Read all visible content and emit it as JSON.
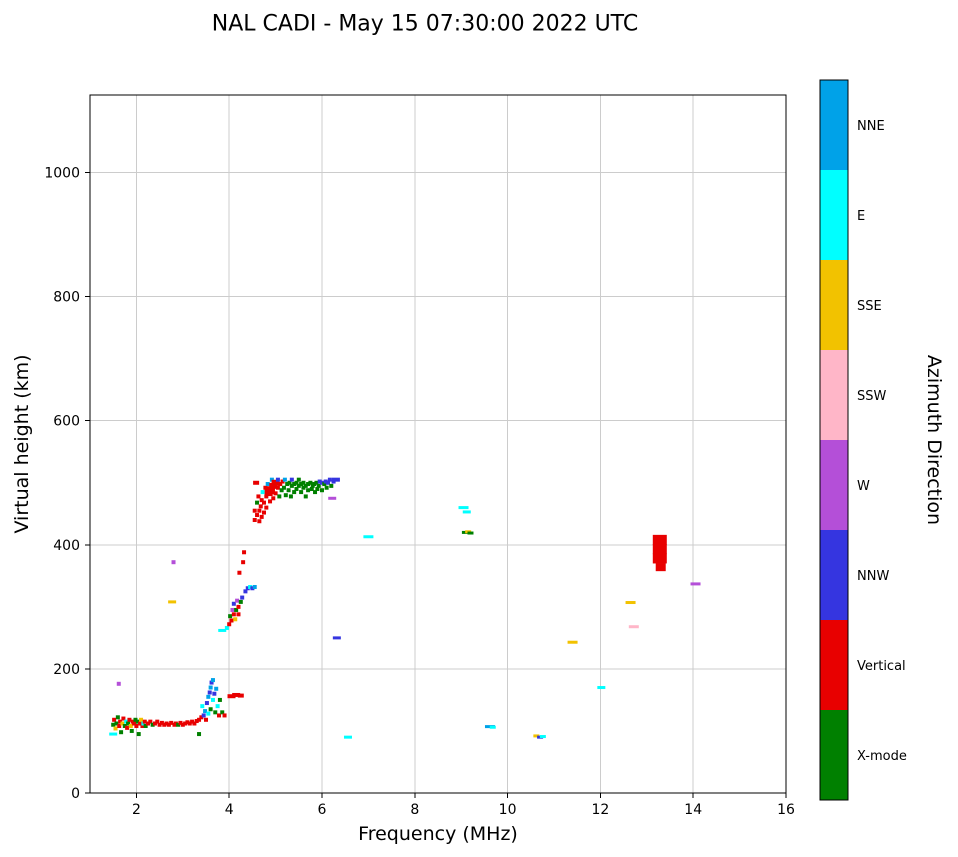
{
  "title": "NAL CADI - May 15 07:30:00 2022 UTC",
  "chart_data": {
    "type": "scatter",
    "title": "NAL CADI - May 15 07:30:00 2022 UTC",
    "xlabel": "Frequency (MHz)",
    "ylabel": "Virtual height (km)",
    "legend_title": "Azimuth Direction",
    "xlim": [
      1,
      16
    ],
    "ylim": [
      0,
      1125
    ],
    "xticks": [
      2,
      4,
      6,
      8,
      10,
      12,
      14,
      16
    ],
    "yticks": [
      0,
      200,
      400,
      600,
      800,
      1000
    ],
    "grid": true,
    "grid_color": "#cccccc",
    "categories": [
      {
        "label": "NNE",
        "color": "#00A2E8"
      },
      {
        "label": "E",
        "color": "#00FFFF"
      },
      {
        "label": "SSE",
        "color": "#F2C200"
      },
      {
        "label": "SSW",
        "color": "#FFB6C8"
      },
      {
        "label": "W",
        "color": "#B44FD8"
      },
      {
        "label": "NNW",
        "color": "#3535E0"
      },
      {
        "label": "Vertical",
        "color": "#E80000"
      },
      {
        "label": "X-mode",
        "color": "#008000"
      }
    ],
    "points_format": [
      "freq_MHz",
      "height_km",
      "direction",
      "marker_w_px_optional",
      "marker_h_px_optional"
    ],
    "points": [
      [
        1.5,
        95,
        "E",
        8,
        3
      ],
      [
        1.5,
        110,
        "X-mode"
      ],
      [
        1.52,
        118,
        "Vertical"
      ],
      [
        1.55,
        104,
        "SSE"
      ],
      [
        1.57,
        112,
        "X-mode"
      ],
      [
        1.6,
        122,
        "X-mode"
      ],
      [
        1.62,
        176,
        "W"
      ],
      [
        1.63,
        108,
        "Vertical"
      ],
      [
        1.65,
        115,
        "Vertical"
      ],
      [
        1.67,
        98,
        "X-mode"
      ],
      [
        1.7,
        112,
        "SSE"
      ],
      [
        1.72,
        120,
        "Vertical"
      ],
      [
        1.75,
        108,
        "X-mode"
      ],
      [
        1.78,
        115,
        "E"
      ],
      [
        1.8,
        105,
        "Vertical"
      ],
      [
        1.82,
        112,
        "X-mode"
      ],
      [
        1.85,
        118,
        "Vertical"
      ],
      [
        1.88,
        108,
        "SSE"
      ],
      [
        1.9,
        100,
        "X-mode"
      ],
      [
        1.92,
        115,
        "Vertical"
      ],
      [
        1.95,
        112,
        "Vertical"
      ],
      [
        1.98,
        118,
        "X-mode"
      ],
      [
        2.0,
        108,
        "Vertical"
      ],
      [
        2.03,
        115,
        "X-mode"
      ],
      [
        2.05,
        95,
        "X-mode"
      ],
      [
        2.08,
        112,
        "Vertical"
      ],
      [
        2.1,
        118,
        "SSE"
      ],
      [
        2.13,
        108,
        "Vertical"
      ],
      [
        2.15,
        112,
        "E"
      ],
      [
        2.18,
        115,
        "Vertical"
      ],
      [
        2.2,
        108,
        "X-mode"
      ],
      [
        2.25,
        112,
        "Vertical"
      ],
      [
        2.3,
        115,
        "Vertical"
      ],
      [
        2.35,
        110,
        "X-mode"
      ],
      [
        2.4,
        112,
        "Vertical"
      ],
      [
        2.45,
        115,
        "Vertical"
      ],
      [
        2.5,
        110,
        "Vertical"
      ],
      [
        2.55,
        113,
        "Vertical"
      ],
      [
        2.6,
        110,
        "Vertical"
      ],
      [
        2.65,
        112,
        "Vertical"
      ],
      [
        2.7,
        110,
        "Vertical"
      ],
      [
        2.75,
        113,
        "Vertical"
      ],
      [
        2.77,
        308,
        "SSE",
        8,
        3
      ],
      [
        2.8,
        372,
        "W"
      ],
      [
        2.82,
        110,
        "Vertical"
      ],
      [
        2.85,
        112,
        "Vertical"
      ],
      [
        2.9,
        110,
        "X-mode"
      ],
      [
        2.95,
        113,
        "Vertical"
      ],
      [
        3.0,
        110,
        "Vertical"
      ],
      [
        3.05,
        112,
        "Vertical"
      ],
      [
        3.1,
        114,
        "Vertical"
      ],
      [
        3.15,
        112,
        "Vertical"
      ],
      [
        3.2,
        115,
        "Vertical"
      ],
      [
        3.25,
        112,
        "Vertical"
      ],
      [
        3.3,
        116,
        "Vertical"
      ],
      [
        3.35,
        95,
        "X-mode"
      ],
      [
        3.35,
        118,
        "Vertical"
      ],
      [
        3.4,
        122,
        "Vertical"
      ],
      [
        3.42,
        140,
        "E"
      ],
      [
        3.45,
        125,
        "NNW"
      ],
      [
        3.48,
        132,
        "NNE"
      ],
      [
        3.5,
        118,
        "Vertical"
      ],
      [
        3.52,
        145,
        "NNW"
      ],
      [
        3.55,
        155,
        "NNE"
      ],
      [
        3.55,
        128,
        "E"
      ],
      [
        3.58,
        162,
        "NNW"
      ],
      [
        3.6,
        170,
        "NNE"
      ],
      [
        3.6,
        135,
        "X-mode"
      ],
      [
        3.62,
        178,
        "NNW"
      ],
      [
        3.65,
        150,
        "E"
      ],
      [
        3.65,
        182,
        "NNE"
      ],
      [
        3.68,
        160,
        "NNW"
      ],
      [
        3.7,
        130,
        "X-mode"
      ],
      [
        3.72,
        168,
        "NNE"
      ],
      [
        3.75,
        140,
        "E"
      ],
      [
        3.78,
        125,
        "Vertical"
      ],
      [
        3.8,
        150,
        "X-mode"
      ],
      [
        3.85,
        130,
        "X-mode"
      ],
      [
        3.9,
        125,
        "Vertical"
      ],
      [
        4.05,
        156,
        "Vertical",
        8,
        4
      ],
      [
        4.15,
        158,
        "Vertical",
        8,
        4
      ],
      [
        4.25,
        157,
        "Vertical",
        6,
        4
      ],
      [
        3.85,
        262,
        "E",
        8,
        3
      ],
      [
        3.95,
        266,
        "E"
      ],
      [
        4.0,
        272,
        "Vertical"
      ],
      [
        4.02,
        285,
        "X-mode"
      ],
      [
        4.05,
        278,
        "Vertical"
      ],
      [
        4.07,
        295,
        "W"
      ],
      [
        4.1,
        288,
        "Vertical"
      ],
      [
        4.1,
        305,
        "NNW"
      ],
      [
        4.13,
        280,
        "SSE"
      ],
      [
        4.15,
        295,
        "X-mode"
      ],
      [
        4.17,
        310,
        "W"
      ],
      [
        4.2,
        300,
        "Vertical"
      ],
      [
        4.2,
        288,
        "Vertical"
      ],
      [
        4.22,
        355,
        "Vertical"
      ],
      [
        4.25,
        308,
        "X-mode"
      ],
      [
        4.28,
        315,
        "NNW"
      ],
      [
        4.3,
        372,
        "Vertical"
      ],
      [
        4.32,
        388,
        "Vertical"
      ],
      [
        4.35,
        325,
        "NNW"
      ],
      [
        4.4,
        330,
        "NNW"
      ],
      [
        4.45,
        332,
        "E"
      ],
      [
        4.5,
        330,
        "NNW"
      ],
      [
        4.55,
        332,
        "NNE"
      ],
      [
        4.55,
        440,
        "Vertical"
      ],
      [
        4.55,
        455,
        "Vertical"
      ],
      [
        4.58,
        500,
        "Vertical",
        6,
        4
      ],
      [
        4.6,
        448,
        "Vertical"
      ],
      [
        4.6,
        468,
        "X-mode"
      ],
      [
        4.63,
        478,
        "Vertical"
      ],
      [
        4.65,
        455,
        "Vertical"
      ],
      [
        4.65,
        438,
        "Vertical"
      ],
      [
        4.68,
        462,
        "Vertical"
      ],
      [
        4.7,
        472,
        "Vertical"
      ],
      [
        4.7,
        445,
        "Vertical"
      ],
      [
        4.72,
        485,
        "E"
      ],
      [
        4.75,
        468,
        "Vertical"
      ],
      [
        4.75,
        452,
        "Vertical"
      ],
      [
        4.78,
        492,
        "Vertical"
      ],
      [
        4.8,
        478,
        "Vertical"
      ],
      [
        4.8,
        460,
        "Vertical"
      ],
      [
        4.83,
        498,
        "NNE"
      ],
      [
        4.85,
        485,
        "Vertical",
        8,
        8
      ],
      [
        4.88,
        470,
        "Vertical"
      ],
      [
        4.9,
        488,
        "Vertical",
        8,
        8
      ],
      [
        4.92,
        505,
        "NNE"
      ],
      [
        4.95,
        495,
        "Vertical",
        8,
        6
      ],
      [
        4.95,
        475,
        "Vertical"
      ],
      [
        5.0,
        500,
        "Vertical",
        8,
        6
      ],
      [
        5.0,
        483,
        "Vertical"
      ],
      [
        5.05,
        492,
        "Vertical"
      ],
      [
        5.05,
        505,
        "NNW"
      ],
      [
        5.08,
        478,
        "X-mode"
      ],
      [
        5.1,
        498,
        "Vertical"
      ],
      [
        5.13,
        488,
        "X-mode"
      ],
      [
        5.15,
        502,
        "Vertical"
      ],
      [
        5.18,
        492,
        "X-mode"
      ],
      [
        5.2,
        505,
        "NNE"
      ],
      [
        5.22,
        480,
        "X-mode"
      ],
      [
        5.25,
        498,
        "X-mode"
      ],
      [
        5.28,
        488,
        "X-mode"
      ],
      [
        5.3,
        500,
        "X-mode"
      ],
      [
        5.33,
        478,
        "X-mode"
      ],
      [
        5.35,
        495,
        "X-mode"
      ],
      [
        5.35,
        505,
        "NNW"
      ],
      [
        5.4,
        498,
        "X-mode"
      ],
      [
        5.4,
        485,
        "X-mode"
      ],
      [
        5.45,
        500,
        "X-mode"
      ],
      [
        5.45,
        490,
        "X-mode"
      ],
      [
        5.5,
        495,
        "X-mode"
      ],
      [
        5.5,
        505,
        "X-mode"
      ],
      [
        5.55,
        498,
        "X-mode"
      ],
      [
        5.55,
        485,
        "X-mode"
      ],
      [
        5.6,
        500,
        "X-mode"
      ],
      [
        5.6,
        492,
        "X-mode"
      ],
      [
        5.65,
        495,
        "X-mode"
      ],
      [
        5.65,
        478,
        "X-mode"
      ],
      [
        5.7,
        498,
        "X-mode"
      ],
      [
        5.7,
        488,
        "X-mode"
      ],
      [
        5.75,
        500,
        "X-mode"
      ],
      [
        5.78,
        490,
        "X-mode"
      ],
      [
        5.8,
        495,
        "X-mode"
      ],
      [
        5.83,
        498,
        "X-mode"
      ],
      [
        5.85,
        485,
        "X-mode"
      ],
      [
        5.88,
        500,
        "X-mode"
      ],
      [
        5.9,
        490,
        "X-mode"
      ],
      [
        5.93,
        495,
        "X-mode"
      ],
      [
        5.95,
        502,
        "NNW"
      ],
      [
        6.0,
        488,
        "X-mode"
      ],
      [
        6.0,
        500,
        "NNW"
      ],
      [
        6.05,
        498,
        "X-mode"
      ],
      [
        6.08,
        502,
        "NNW"
      ],
      [
        6.1,
        492,
        "X-mode"
      ],
      [
        6.13,
        500,
        "NNW"
      ],
      [
        6.17,
        505,
        "NNW"
      ],
      [
        6.2,
        495,
        "X-mode"
      ],
      [
        6.22,
        475,
        "W",
        8,
        3
      ],
      [
        6.25,
        502,
        "NNW"
      ],
      [
        6.3,
        505,
        "NNW",
        8,
        4
      ],
      [
        6.32,
        250,
        "NNW",
        8,
        3
      ],
      [
        6.56,
        90,
        "E",
        8,
        3
      ],
      [
        7.0,
        413,
        "E",
        10,
        3
      ],
      [
        9.05,
        460,
        "E",
        10,
        3
      ],
      [
        9.12,
        453,
        "E",
        8,
        3
      ],
      [
        9.08,
        420,
        "X-mode",
        6,
        3
      ],
      [
        9.15,
        421,
        "SSE",
        6,
        3
      ],
      [
        9.2,
        419,
        "X-mode",
        6,
        3
      ],
      [
        9.62,
        107,
        "NNE",
        10,
        3
      ],
      [
        9.68,
        106,
        "E",
        6,
        3
      ],
      [
        10.62,
        92,
        "SSE",
        6,
        3
      ],
      [
        10.7,
        90,
        "NNW",
        6,
        3
      ],
      [
        10.76,
        91,
        "E",
        6,
        3
      ],
      [
        11.4,
        243,
        "SSE",
        10,
        3
      ],
      [
        12.02,
        170,
        "E",
        8,
        3
      ],
      [
        12.65,
        307,
        "SSE",
        10,
        3
      ],
      [
        12.72,
        268,
        "SSW",
        10,
        3
      ],
      [
        13.28,
        408,
        "Vertical",
        14,
        10
      ],
      [
        13.28,
        393,
        "Vertical",
        14,
        10
      ],
      [
        13.28,
        378,
        "Vertical",
        14,
        10
      ],
      [
        13.3,
        364,
        "Vertical",
        10,
        8
      ],
      [
        14.05,
        337,
        "W",
        10,
        3
      ]
    ]
  }
}
